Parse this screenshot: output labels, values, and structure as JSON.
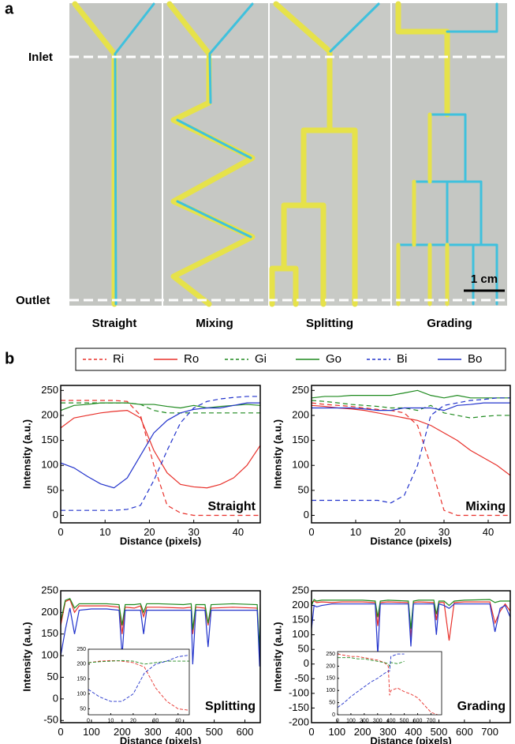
{
  "panel_a": {
    "label": "a",
    "inlet": "Inlet",
    "outlet": "Outlet",
    "scale": "1 cm",
    "captions": [
      "Straight",
      "Mixing",
      "Splitting",
      "Grading"
    ]
  },
  "panel_b_label": "b",
  "chart_data": [
    {
      "type": "line",
      "title": "Straight",
      "xlabel": "Distance (pixels)",
      "ylabel": "Intensity (a.u.)",
      "xlim": [
        0,
        45
      ],
      "xticks": [
        0,
        10,
        20,
        30,
        40
      ],
      "ylim": [
        -15,
        260
      ],
      "yticks": [
        0,
        50,
        100,
        150,
        200,
        250
      ],
      "x": [
        0,
        3,
        6,
        9,
        12,
        15,
        18,
        21,
        24,
        27,
        30,
        33,
        36,
        39,
        42,
        45
      ],
      "series": [
        {
          "name": "Ri",
          "color": "#e8302a",
          "dash": true,
          "values": [
            230,
            230,
            230,
            230,
            230,
            228,
            200,
            100,
            20,
            5,
            0,
            0,
            0,
            0,
            0,
            0
          ]
        },
        {
          "name": "Ro",
          "color": "#e8302a",
          "dash": false,
          "values": [
            175,
            195,
            200,
            205,
            208,
            210,
            195,
            130,
            85,
            62,
            57,
            55,
            62,
            75,
            100,
            140
          ]
        },
        {
          "name": "Gi",
          "color": "#1e8a1e",
          "dash": true,
          "values": [
            225,
            225,
            225,
            225,
            225,
            225,
            222,
            210,
            205,
            205,
            205,
            205,
            205,
            205,
            205,
            205
          ]
        },
        {
          "name": "Go",
          "color": "#1e8a1e",
          "dash": false,
          "values": [
            210,
            220,
            222,
            225,
            225,
            225,
            222,
            222,
            218,
            215,
            220,
            215,
            218,
            220,
            222,
            220
          ]
        },
        {
          "name": "Bi",
          "color": "#2233cc",
          "dash": true,
          "values": [
            10,
            10,
            10,
            10,
            10,
            12,
            20,
            70,
            130,
            185,
            215,
            228,
            233,
            236,
            238,
            238
          ]
        },
        {
          "name": "Bo",
          "color": "#2233cc",
          "dash": false,
          "values": [
            105,
            95,
            78,
            63,
            55,
            75,
            120,
            165,
            190,
            205,
            212,
            215,
            215,
            220,
            225,
            225
          ]
        }
      ]
    },
    {
      "type": "line",
      "title": "Mixing",
      "xlabel": "Distance (pixels)",
      "ylabel": "Intensity (a.u.)",
      "xlim": [
        0,
        45
      ],
      "xticks": [
        0,
        10,
        20,
        30,
        40
      ],
      "ylim": [
        -15,
        260
      ],
      "yticks": [
        0,
        50,
        100,
        150,
        200,
        250
      ],
      "x": [
        0,
        3,
        6,
        9,
        12,
        15,
        18,
        21,
        24,
        27,
        30,
        33,
        36,
        39,
        42,
        45
      ],
      "series": [
        {
          "name": "Ri",
          "color": "#e8302a",
          "dash": true,
          "values": [
            225,
            222,
            220,
            218,
            215,
            212,
            210,
            205,
            180,
            100,
            10,
            0,
            0,
            0,
            0,
            0
          ]
        },
        {
          "name": "Ro",
          "color": "#e8302a",
          "dash": false,
          "values": [
            220,
            218,
            215,
            213,
            210,
            205,
            200,
            195,
            190,
            180,
            165,
            150,
            130,
            115,
            100,
            80
          ]
        },
        {
          "name": "Gi",
          "color": "#1e8a1e",
          "dash": true,
          "values": [
            230,
            228,
            225,
            222,
            220,
            218,
            215,
            215,
            210,
            220,
            205,
            200,
            195,
            198,
            200,
            200
          ]
        },
        {
          "name": "Go",
          "color": "#1e8a1e",
          "dash": false,
          "values": [
            235,
            238,
            238,
            240,
            240,
            240,
            240,
            245,
            250,
            240,
            235,
            240,
            235,
            235,
            235,
            235
          ]
        },
        {
          "name": "Bi",
          "color": "#2233cc",
          "dash": true,
          "values": [
            30,
            30,
            30,
            30,
            30,
            30,
            25,
            40,
            100,
            200,
            220,
            225,
            230,
            232,
            235,
            235
          ]
        },
        {
          "name": "Bo",
          "color": "#2233cc",
          "dash": false,
          "values": [
            215,
            215,
            215,
            215,
            213,
            210,
            210,
            215,
            215,
            215,
            210,
            220,
            222,
            225,
            225,
            225
          ]
        }
      ]
    },
    {
      "type": "line",
      "title": "Splitting",
      "xlabel": "Distance (pixels)",
      "ylabel": "Intensity (a.u.)",
      "xlim": [
        0,
        650
      ],
      "xticks": [
        0,
        100,
        200,
        300,
        400,
        500,
        600
      ],
      "ylim": [
        -55,
        250
      ],
      "yticks": [
        -50,
        0,
        50,
        100,
        150,
        200,
        250
      ],
      "x": [
        0,
        15,
        30,
        45,
        60,
        100,
        150,
        190,
        200,
        210,
        240,
        260,
        270,
        280,
        320,
        400,
        425,
        430,
        440,
        470,
        480,
        490,
        560,
        640,
        648,
        650
      ],
      "series": [
        {
          "name": "Ro",
          "color": "#e8302a",
          "dash": false,
          "values": [
            170,
            225,
            230,
            200,
            215,
            215,
            215,
            212,
            150,
            212,
            210,
            215,
            190,
            212,
            212,
            210,
            212,
            150,
            212,
            210,
            170,
            210,
            212,
            210,
            100,
            210
          ]
        },
        {
          "name": "Go",
          "color": "#1e8a1e",
          "dash": false,
          "values": [
            180,
            228,
            232,
            210,
            220,
            220,
            220,
            218,
            170,
            218,
            218,
            220,
            200,
            220,
            220,
            218,
            220,
            160,
            218,
            218,
            175,
            218,
            220,
            218,
            110,
            218
          ]
        },
        {
          "name": "Bo",
          "color": "#2233cc",
          "dash": false,
          "values": [
            100,
            160,
            210,
            150,
            205,
            208,
            208,
            205,
            100,
            205,
            205,
            205,
            150,
            205,
            205,
            205,
            205,
            80,
            205,
            205,
            120,
            205,
            205,
            205,
            75,
            200
          ]
        }
      ],
      "inset": {
        "xlim": [
          0,
          45
        ],
        "xticks": [
          0,
          10,
          20,
          30,
          40
        ],
        "ylim": [
          30,
          250
        ],
        "yticks": [
          50,
          100,
          150,
          200,
          250
        ],
        "x": [
          0,
          5,
          10,
          15,
          20,
          25,
          30,
          35,
          40,
          45
        ],
        "series": [
          {
            "name": "Ri",
            "color": "#e8302a",
            "dash": true,
            "values": [
              205,
              210,
              212,
              210,
              205,
              190,
              120,
              75,
              50,
              45
            ]
          },
          {
            "name": "Gi",
            "color": "#1e8a1e",
            "dash": true,
            "values": [
              205,
              208,
              210,
              212,
              210,
              200,
              205,
              210,
              210,
              210
            ]
          },
          {
            "name": "Bi",
            "color": "#2233cc",
            "dash": true,
            "values": [
              115,
              90,
              75,
              75,
              100,
              170,
              200,
              210,
              225,
              230
            ]
          }
        ]
      }
    },
    {
      "type": "line",
      "title": "Grading",
      "xlabel": "Distance (pixels)",
      "ylabel": "Intensity (a.u.)",
      "xlim": [
        0,
        780
      ],
      "xticks": [
        0,
        100,
        200,
        300,
        400,
        500,
        600,
        700
      ],
      "ylim": [
        -200,
        250
      ],
      "yticks": [
        -200,
        -150,
        -100,
        -50,
        0,
        50,
        100,
        150,
        200,
        250
      ],
      "x": [
        0,
        10,
        20,
        40,
        80,
        120,
        200,
        250,
        260,
        270,
        300,
        380,
        390,
        400,
        420,
        480,
        490,
        500,
        520,
        540,
        560,
        600,
        700,
        720,
        740,
        760,
        780
      ],
      "series": [
        {
          "name": "Ro",
          "color": "#e8302a",
          "dash": false,
          "values": [
            210,
            215,
            210,
            212,
            210,
            212,
            212,
            210,
            130,
            210,
            212,
            210,
            90,
            210,
            212,
            210,
            150,
            210,
            210,
            80,
            210,
            212,
            212,
            140,
            180,
            205,
            180
          ]
        },
        {
          "name": "Go",
          "color": "#1e8a1e",
          "dash": false,
          "values": [
            200,
            220,
            215,
            218,
            218,
            218,
            218,
            215,
            160,
            215,
            218,
            215,
            120,
            215,
            218,
            218,
            170,
            215,
            215,
            200,
            215,
            218,
            220,
            210,
            215,
            215,
            215
          ]
        },
        {
          "name": "Bo",
          "color": "#2233cc",
          "dash": false,
          "values": [
            120,
            200,
            195,
            200,
            205,
            205,
            205,
            205,
            30,
            205,
            205,
            205,
            60,
            205,
            205,
            205,
            100,
            205,
            200,
            190,
            205,
            205,
            205,
            110,
            190,
            200,
            160
          ]
        }
      ],
      "inset": {
        "xlim": [
          0,
          780
        ],
        "xticks": [
          0,
          100,
          200,
          300,
          400,
          500,
          600,
          700
        ],
        "ylim": [
          0,
          260
        ],
        "yticks": [
          0,
          50,
          100,
          150,
          200,
          250
        ],
        "x": [
          0,
          50,
          100,
          150,
          200,
          250,
          300,
          350,
          380,
          390,
          400,
          450,
          500,
          550,
          600,
          650,
          700,
          750
        ],
        "series": [
          {
            "name": "Ri",
            "color": "#e8302a",
            "dash": true,
            "values": [
              250,
              245,
              240,
              240,
              235,
              230,
              225,
              215,
              200,
              80,
              100,
              110,
              95,
              85,
              70,
              40,
              10,
              0
            ]
          },
          {
            "name": "Gi",
            "color": "#1e8a1e",
            "dash": true,
            "values": [
              235,
              235,
              235,
              230,
              230,
              225,
              220,
              215,
              210,
              200,
              215,
              210,
              220,
              null,
              null,
              null,
              null,
              null
            ]
          },
          {
            "name": "Bi",
            "color": "#2233cc",
            "dash": true,
            "values": [
              30,
              50,
              75,
              95,
              115,
              135,
              150,
              170,
              180,
              180,
              240,
              250,
              250,
              null,
              null,
              null,
              null,
              null
            ]
          }
        ]
      }
    }
  ]
}
